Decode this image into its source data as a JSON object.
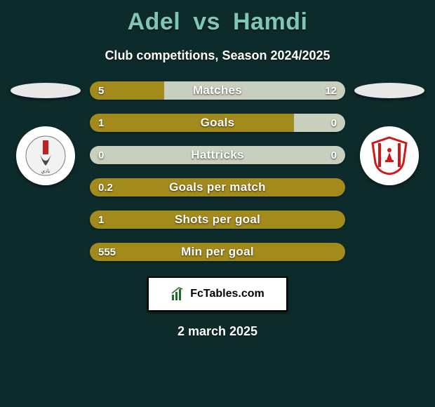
{
  "background_color": "#0d2b2a",
  "title": {
    "player1": "Adel",
    "vs": "vs",
    "player2": "Hamdi",
    "color_player1": "#7fc6b8",
    "color_vs": "#7fc6b8",
    "color_player2": "#7fc6b8",
    "fontsize": 34
  },
  "subtitle": {
    "text": "Club competitions, Season 2024/2025",
    "color": "#ffffff",
    "fontsize": 18
  },
  "flags": {
    "left_color": "#e8e8e8",
    "right_color": "#e8e8e8"
  },
  "badges": {
    "left": {
      "bg": "#ffffff",
      "accent": "#c02020"
    },
    "right": {
      "bg": "#ffffff",
      "stripes": "#d01818"
    }
  },
  "bars": {
    "left_color": "#a38a1d",
    "right_color": "#c9cfbd",
    "label_color": "#ffffff",
    "value_color": "#ffffff",
    "height": 26,
    "radius": 13,
    "fontsize_label": 17,
    "fontsize_value": 15,
    "rows": [
      {
        "label": "Matches",
        "left_val": "5",
        "right_val": "12",
        "left_pct": 29,
        "right_pct": 71
      },
      {
        "label": "Goals",
        "left_val": "1",
        "right_val": "0",
        "left_pct": 80,
        "right_pct": 20
      },
      {
        "label": "Hattricks",
        "left_val": "0",
        "right_val": "0",
        "left_pct": 50,
        "right_pct": 50,
        "full_right": true
      },
      {
        "label": "Goals per match",
        "left_val": "0.2",
        "right_val": "",
        "left_pct": 100,
        "right_pct": 0
      },
      {
        "label": "Shots per goal",
        "left_val": "1",
        "right_val": "",
        "left_pct": 100,
        "right_pct": 0
      },
      {
        "label": "Min per goal",
        "left_val": "555",
        "right_val": "",
        "left_pct": 100,
        "right_pct": 0
      }
    ]
  },
  "brand": {
    "text": "FcTables.com",
    "bg": "#ffffff",
    "border": "#000000",
    "text_color": "#000000",
    "icon_color": "#1a6b2e"
  },
  "date": {
    "text": "2 march 2025",
    "color": "#ffffff",
    "fontsize": 18
  }
}
